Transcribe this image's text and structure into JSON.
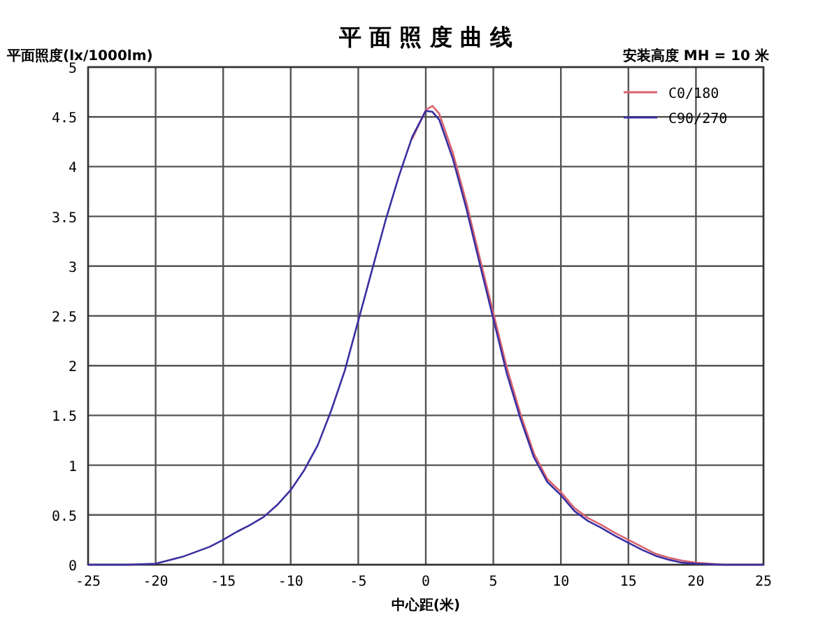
{
  "chart_data": {
    "type": "line",
    "title": "平 面 照 度 曲 线",
    "xlabel": "中心距(米)",
    "ylabel": "平面照度(lx/1000lm)",
    "annotations": [
      "安装高度 MH = 10 米"
    ],
    "xlim": [
      -25,
      25
    ],
    "ylim": [
      0,
      5
    ],
    "xticks": [
      -25,
      -20,
      -15,
      -10,
      -5,
      0,
      5,
      10,
      15,
      20,
      25
    ],
    "yticks": [
      0,
      0.5,
      1,
      1.5,
      2,
      2.5,
      3,
      3.5,
      4,
      4.5,
      5
    ],
    "grid": true,
    "legend": "top right",
    "line_style": "solid",
    "marker": "none",
    "x": [
      -25,
      -22,
      -20,
      -18,
      -16,
      -15,
      -14,
      -13,
      -12,
      -11,
      -10,
      -9,
      -8,
      -7,
      -6,
      -5,
      -4,
      -3,
      -2,
      -1,
      0,
      0.5,
      1,
      2,
      3,
      4,
      5,
      6,
      7,
      8,
      9,
      10,
      11,
      12,
      13,
      14,
      15,
      16,
      17,
      18,
      19,
      20,
      22,
      25
    ],
    "series": [
      {
        "name": "C0/180",
        "color": "#d9636e",
        "values": [
          null,
          null,
          null,
          null,
          null,
          null,
          null,
          null,
          null,
          null,
          null,
          null,
          null,
          null,
          null,
          null,
          null,
          null,
          null,
          4.28,
          4.57,
          4.61,
          4.53,
          4.14,
          3.64,
          3.08,
          2.53,
          1.98,
          1.52,
          1.12,
          0.86,
          0.73,
          0.57,
          0.47,
          0.4,
          0.32,
          0.25,
          0.18,
          0.11,
          0.07,
          0.04,
          0.02,
          0,
          0
        ]
      },
      {
        "name": "C90/270",
        "color": "#3a2fa0",
        "values": [
          0,
          0,
          0.01,
          0.08,
          0.18,
          0.25,
          0.33,
          0.4,
          0.48,
          0.6,
          0.75,
          0.95,
          1.2,
          1.55,
          1.95,
          2.45,
          2.95,
          3.45,
          3.9,
          4.3,
          4.56,
          4.55,
          4.47,
          4.08,
          3.58,
          3.02,
          2.47,
          1.92,
          1.47,
          1.08,
          0.83,
          0.7,
          0.54,
          0.44,
          0.37,
          0.29,
          0.22,
          0.15,
          0.09,
          0.05,
          0.02,
          0.01,
          0,
          0
        ]
      }
    ]
  }
}
